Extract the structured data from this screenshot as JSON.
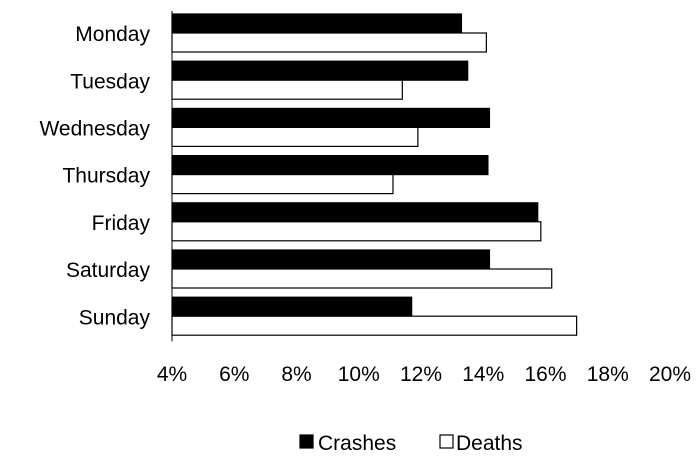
{
  "chart_data": {
    "type": "bar",
    "orientation": "horizontal",
    "categories": [
      "Monday",
      "Tuesday",
      "Wednesday",
      "Thursday",
      "Friday",
      "Saturday",
      "Sunday"
    ],
    "series": [
      {
        "name": "Crashes",
        "color": "#000000",
        "fill": "#000000",
        "values": [
          13.3,
          13.5,
          14.2,
          14.15,
          15.75,
          14.2,
          11.7
        ]
      },
      {
        "name": "Deaths",
        "color": "#000000",
        "fill": "#ffffff",
        "values": [
          14.1,
          11.4,
          11.9,
          11.1,
          15.85,
          16.2,
          17.0
        ]
      }
    ],
    "xlim": [
      4,
      20
    ],
    "xticks": [
      "4%",
      "6%",
      "8%",
      "10%",
      "12%",
      "14%",
      "16%",
      "18%",
      "20%"
    ],
    "xtick_values": [
      4,
      6,
      8,
      10,
      12,
      14,
      16,
      18,
      20
    ],
    "legend_position": "bottom",
    "grid": false
  }
}
